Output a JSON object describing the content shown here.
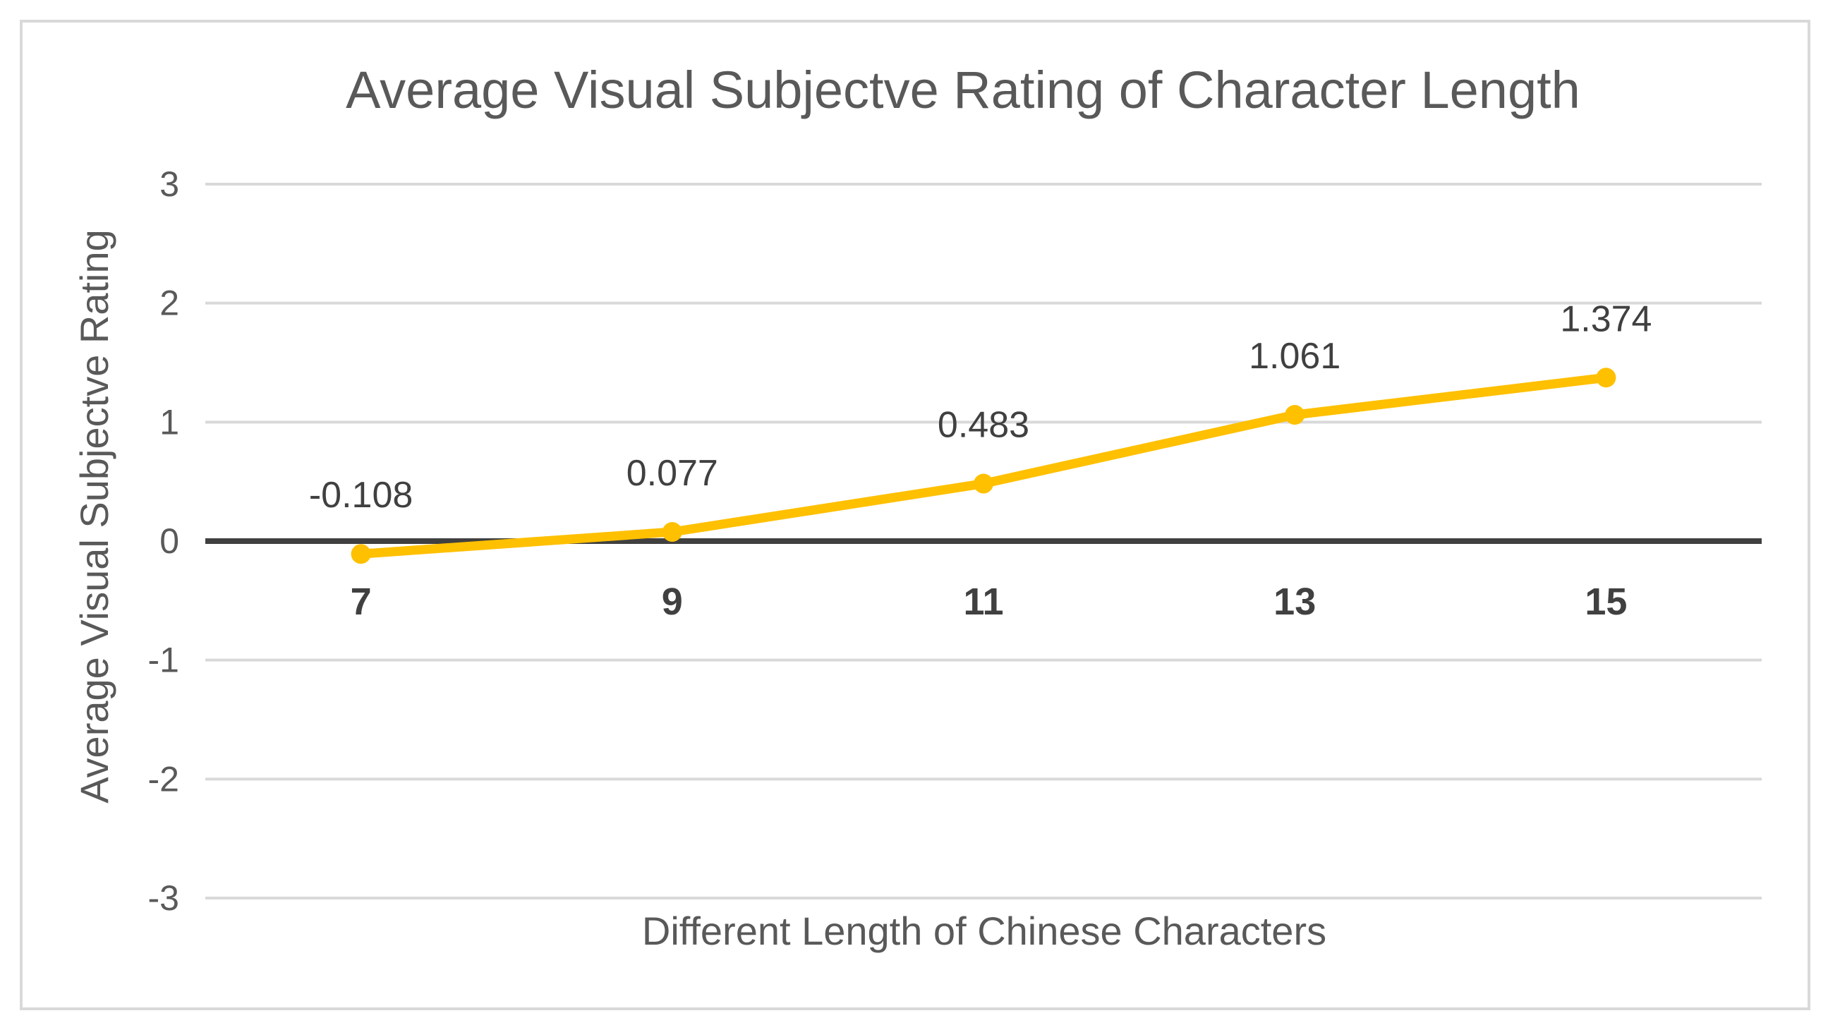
{
  "chart_data": {
    "type": "line",
    "title": "Average Visual Subjectve Rating of Character Length",
    "xlabel": "Different Length of Chinese Characters",
    "ylabel": "Average Visual Subjectve Rating",
    "categories": [
      "7",
      "9",
      "11",
      "13",
      "15"
    ],
    "series": [
      {
        "values": [
          -0.108,
          0.077,
          0.483,
          1.061,
          1.374
        ],
        "data_labels": [
          "-0.108",
          "0.077",
          "0.483",
          "1.061",
          "1.374"
        ],
        "color": "#FFC000"
      }
    ],
    "ylim": [
      -3,
      3
    ],
    "yticks": [
      "3",
      "2",
      "1",
      "0",
      "-1",
      "-2",
      "-3"
    ],
    "grid": true,
    "legend": "none",
    "colors": {
      "grid": "#d9d9d9",
      "zero_axis": "#404040",
      "border": "#d9d9d9"
    }
  }
}
